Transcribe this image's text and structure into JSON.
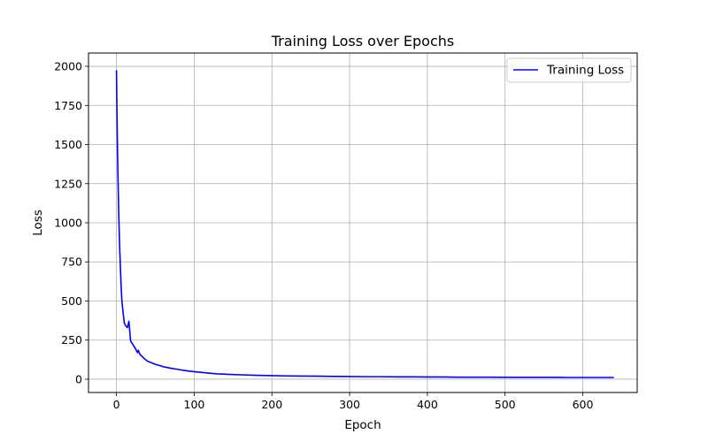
{
  "chart_data": {
    "type": "line",
    "title": "Training Loss over Epochs",
    "xlabel": "Epoch",
    "ylabel": "Loss",
    "xlim": [
      -36,
      670
    ],
    "ylim": [
      -85,
      2085
    ],
    "xticks": [
      0,
      100,
      200,
      300,
      400,
      500,
      600
    ],
    "yticks": [
      0,
      250,
      500,
      750,
      1000,
      1250,
      1500,
      1750,
      2000
    ],
    "grid": true,
    "legend_position": "top-right",
    "series": [
      {
        "name": "Training Loss",
        "color": "#0000ff",
        "x": [
          0,
          1,
          2,
          3,
          4,
          5,
          6,
          7,
          8,
          10,
          12,
          14,
          16,
          17,
          18,
          19,
          20,
          22,
          25,
          27,
          28,
          30,
          35,
          40,
          45,
          50,
          55,
          60,
          70,
          80,
          90,
          100,
          110,
          120,
          130,
          140,
          150,
          160,
          180,
          200,
          220,
          240,
          260,
          280,
          300,
          320,
          340,
          360,
          380,
          400,
          420,
          440,
          460,
          480,
          500,
          520,
          540,
          560,
          580,
          600,
          620,
          640
        ],
        "y": [
          1975,
          1560,
          1280,
          1040,
          860,
          720,
          590,
          500,
          450,
          360,
          340,
          330,
          370,
          310,
          250,
          235,
          230,
          215,
          190,
          170,
          185,
          160,
          135,
          115,
          105,
          95,
          88,
          80,
          70,
          62,
          54,
          48,
          43,
          38,
          34,
          32,
          30,
          28,
          25,
          23,
          21,
          20,
          19,
          18,
          17,
          16,
          16,
          15,
          15,
          14,
          14,
          13,
          13,
          13,
          12,
          12,
          12,
          12,
          11,
          11,
          11,
          11
        ]
      }
    ]
  }
}
